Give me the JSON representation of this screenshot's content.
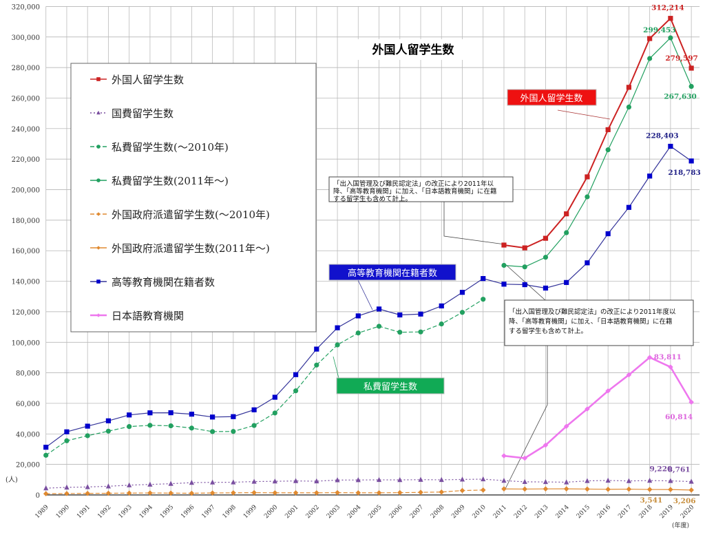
{
  "chart_data": {
    "type": "line",
    "title": "外国人留学生数",
    "ylabel": "(人)",
    "xlabel": "(年度)",
    "ylim": [
      0,
      320000
    ],
    "ytick_step": 20000,
    "grid": true,
    "legend_placement": "top-left",
    "x": [
      1989,
      1990,
      1991,
      1992,
      1993,
      1994,
      1995,
      1996,
      1997,
      1998,
      1999,
      2000,
      2001,
      2002,
      2003,
      2004,
      2005,
      2006,
      2007,
      2008,
      2009,
      2010,
      2011,
      2012,
      2013,
      2014,
      2015,
      2016,
      2017,
      2018,
      2019,
      2020
    ],
    "series": [
      {
        "name": "外国人留学生数",
        "color": "#cc2222",
        "marker": "square",
        "dash": "solid",
        "x": [
          2011,
          2012,
          2013,
          2014,
          2015,
          2016,
          2017,
          2018,
          2019,
          2020
        ],
        "values": [
          163697,
          161848,
          168145,
          184155,
          208379,
          239287,
          267042,
          298980,
          312214,
          279597
        ]
      },
      {
        "name": "国費留学生数",
        "color": "#7a4fa0",
        "marker": "triangle",
        "dash": "dotted",
        "x": [
          1989,
          1990,
          1991,
          1992,
          1993,
          1994,
          1995,
          1996,
          1997,
          1998,
          1999,
          2000,
          2001,
          2002,
          2003,
          2004,
          2005,
          2006,
          2007,
          2008,
          2009,
          2010,
          2011,
          2012,
          2013,
          2014,
          2015,
          2016,
          2017,
          2018,
          2019,
          2020
        ],
        "values": [
          4465,
          4961,
          5219,
          5699,
          6408,
          6880,
          7371,
          8051,
          8250,
          8323,
          8774,
          8930,
          9173,
          9009,
          9746,
          9804,
          9891,
          9869,
          10020,
          9923,
          10168,
          10349,
          9396,
          8588,
          8529,
          8351,
          9223,
          9481,
          9166,
          9423,
          9220,
          8761
        ]
      },
      {
        "name": "私費留学生数(～2010年)",
        "color": "#22a060",
        "marker": "circle",
        "dash": "dashed",
        "x": [
          1989,
          1990,
          1991,
          1992,
          1993,
          1994,
          1995,
          1996,
          1997,
          1998,
          1999,
          2000,
          2001,
          2002,
          2003,
          2004,
          2005,
          2006,
          2007,
          2008,
          2009,
          2010
        ],
        "values": [
          26000,
          35500,
          38800,
          41800,
          44800,
          45600,
          45300,
          43800,
          41500,
          41600,
          45500,
          53700,
          68200,
          85100,
          98300,
          106100,
          110500,
          106600,
          106800,
          112000,
          119600,
          128200
        ]
      },
      {
        "name": "私費留学生数(2011年～)",
        "color": "#22a060",
        "marker": "circle",
        "dash": "solid",
        "x": [
          2011,
          2012,
          2013,
          2014,
          2015,
          2016,
          2017,
          2018,
          2019,
          2020
        ],
        "values": [
          150400,
          149400,
          155700,
          171800,
          195300,
          226100,
          254100,
          285900,
          299453,
          267630
        ]
      },
      {
        "name": "外国政府派遣留学生数(～2010年)",
        "color": "#e08a30",
        "marker": "diamond",
        "dash": "dashed",
        "x": [
          1989,
          1990,
          1991,
          1992,
          1993,
          1994,
          1995,
          1996,
          1997,
          1998,
          1999,
          2000,
          2001,
          2002,
          2003,
          2004,
          2005,
          2006,
          2007,
          2008,
          2009,
          2010
        ],
        "values": [
          800,
          900,
          1000,
          1100,
          1200,
          1300,
          1200,
          1100,
          1300,
          1400,
          1500,
          1400,
          1400,
          1400,
          1500,
          1400,
          1400,
          1500,
          1700,
          1900,
          2900,
          3200
        ]
      },
      {
        "name": "外国政府派遣留学生数(2011年～)",
        "color": "#e08a30",
        "marker": "diamond",
        "dash": "solid",
        "x": [
          2011,
          2012,
          2013,
          2014,
          2015,
          2016,
          2017,
          2018,
          2019,
          2020
        ],
        "values": [
          3958,
          3852,
          3964,
          3996,
          3857,
          3687,
          3804,
          3586,
          3541,
          3206
        ]
      },
      {
        "name": "高等教育機関在籍者数",
        "color": "#0000cc",
        "line_color": "#333399",
        "marker": "square",
        "dash": "solid",
        "x": [
          1989,
          1990,
          1991,
          1992,
          1993,
          1994,
          1995,
          1996,
          1997,
          1998,
          1999,
          2000,
          2001,
          2002,
          2003,
          2004,
          2005,
          2006,
          2007,
          2008,
          2009,
          2010,
          2011,
          2012,
          2013,
          2014,
          2015,
          2016,
          2017,
          2018,
          2019,
          2020
        ],
        "values": [
          31251,
          41347,
          45066,
          48561,
          52405,
          53787,
          53847,
          52921,
          51047,
          51298,
          55755,
          64011,
          78812,
          95550,
          109508,
          117302,
          121812,
          117927,
          118498,
          123829,
          132720,
          141774,
          138075,
          137756,
          135519,
          139185,
          152062,
          171122,
          188384,
          208901,
          228403,
          218783
        ]
      },
      {
        "name": "日本語教育機関",
        "color": "#ee77ee",
        "marker": "diamond",
        "dash": "solid",
        "x": [
          2011,
          2012,
          2013,
          2014,
          2015,
          2016,
          2017,
          2018,
          2019,
          2020
        ],
        "values": [
          25622,
          24092,
          32626,
          44970,
          56317,
          68165,
          78658,
          90079,
          83811,
          60814
        ]
      }
    ],
    "data_labels": [
      {
        "text": "312,214",
        "series": 0,
        "year": 2019,
        "color": "#cc2222"
      },
      {
        "text": "279,597",
        "series": 0,
        "year": 2020,
        "color": "#cc2222"
      },
      {
        "text": "299,453",
        "series": 3,
        "year": 2019,
        "color": "#22a060"
      },
      {
        "text": "267,630",
        "series": 3,
        "year": 2020,
        "color": "#22a060"
      },
      {
        "text": "228,403",
        "series": 6,
        "year": 2019,
        "color": "#222288"
      },
      {
        "text": "218,783",
        "series": 6,
        "year": 2020,
        "color": "#222288"
      },
      {
        "text": "83,811",
        "series": 7,
        "year": 2019,
        "color": "#dd66dd"
      },
      {
        "text": "60,814",
        "series": 7,
        "year": 2020,
        "color": "#dd66dd"
      },
      {
        "text": "9,220",
        "series": 1,
        "year": 2019,
        "color": "#7a4fa0"
      },
      {
        "text": "8,761",
        "series": 1,
        "year": 2020,
        "color": "#7a4fa0"
      },
      {
        "text": "3,541",
        "series": 5,
        "year": 2019,
        "color": "#c89040"
      },
      {
        "text": "3,206",
        "series": 5,
        "year": 2020,
        "color": "#c89040"
      }
    ],
    "callouts": {
      "total": {
        "text": "外国人留学生数",
        "bg": "#ee1111"
      },
      "higher_ed": {
        "text": "高等教育機関在籍者数",
        "bg": "#1111cc"
      },
      "private": {
        "text": "私費留学生数",
        "bg": "#11aa55"
      }
    },
    "notes": [
      [
        "「出入国管理及び難民認定法」の改正により2011年以",
        "降、「高等教育機関」に加え、「日本語教育機関」に在籍",
        "する留学生も含めて計上。"
      ],
      [
        "「出入国管理及び難民認定法」の改正により2011年度以",
        "降、「高等教育機関」に加え、「日本語教育機関」に在籍",
        "する留学生も含めて計上。"
      ]
    ]
  }
}
